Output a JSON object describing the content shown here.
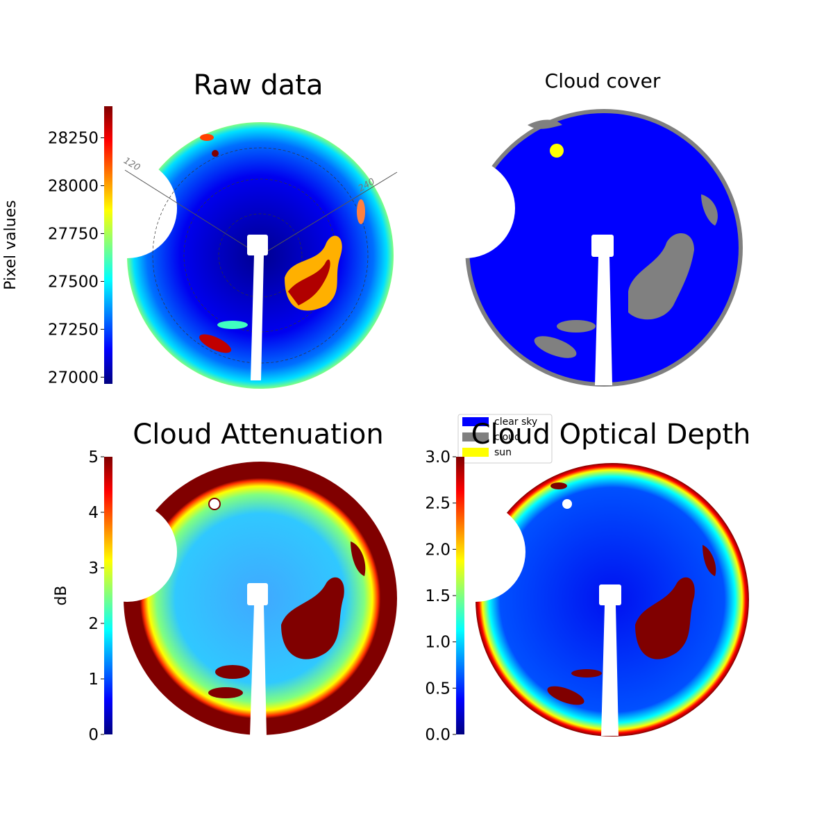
{
  "chart_data": [
    {
      "type": "image",
      "title": "Raw data",
      "ylabel": "Pixel values",
      "colormap": "jet",
      "ylim": [
        26965,
        28415
      ],
      "yticks": [
        27000,
        27250,
        27500,
        27750,
        28000,
        28250
      ],
      "annotations": [
        "120",
        "240"
      ]
    },
    {
      "type": "image",
      "title": "Cloud cover",
      "legend": [
        {
          "name": "clear sky",
          "color": "#0000ff"
        },
        {
          "name": "cloud",
          "color": "#808080"
        },
        {
          "name": "sun",
          "color": "#ffff00"
        }
      ]
    },
    {
      "type": "image",
      "title": "Cloud Attenuation",
      "ylabel": "dB",
      "colormap": "jet",
      "ylim": [
        0,
        5
      ],
      "yticks": [
        0,
        1,
        2,
        3,
        4,
        5
      ]
    },
    {
      "type": "image",
      "title": "Cloud Optical Depth",
      "colormap": "jet",
      "ylim": [
        0,
        3
      ],
      "yticks": [
        {
          "value": 0,
          "label": "0.0"
        },
        {
          "value": 0.5,
          "label": "0.5"
        },
        {
          "value": 1,
          "label": "1.0"
        },
        {
          "value": 1.5,
          "label": "1.5"
        },
        {
          "value": 2,
          "label": "2.0"
        },
        {
          "value": 2.5,
          "label": "2.5"
        },
        {
          "value": 3,
          "label": "3.0"
        }
      ]
    }
  ]
}
